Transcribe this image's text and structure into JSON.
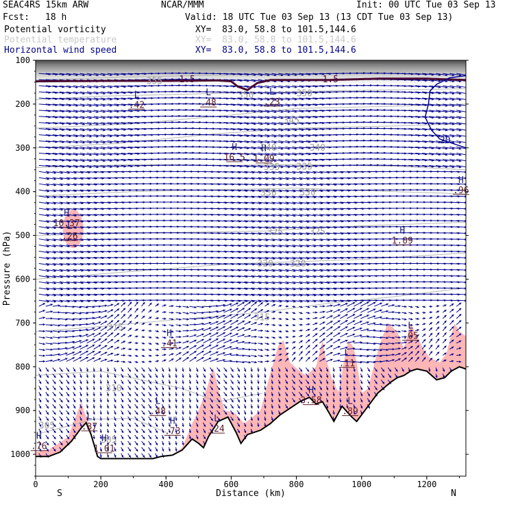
{
  "header": {
    "model": "SEAC4RS 15km ARW",
    "org": "NCAR/MMM",
    "init": "Init: 00 UTC Tue 03 Sep 13",
    "fcst_label": "Fcst:",
    "fcst_value": "18 h",
    "valid": "Valid: 18 UTC Tue 03 Sep 13 (13 CDT Tue 03 Sep 13)"
  },
  "fields": [
    {
      "name": "Potential vorticity",
      "xy": "XY=  83.0, 58.8 to 101.5,144.6",
      "color": "#000000"
    },
    {
      "name": "Potential temperature",
      "xy": "XY=  83.0, 58.8 to 101.5,144.6",
      "color": "#c8c8c8"
    },
    {
      "name": "Horizontal wind speed",
      "xy": "XY=  83.0, 58.8 to 101.5,144.6",
      "color": "#00008b"
    }
  ],
  "chart_data": {
    "type": "cross-section",
    "xlabel": "Distance (km)",
    "ylabel": "Pressure (hPa)",
    "xlim": [
      0,
      1320
    ],
    "ylim": [
      1050,
      100
    ],
    "x_ticks": [
      0,
      200,
      400,
      600,
      800,
      1000,
      1200
    ],
    "y_ticks": [
      100,
      200,
      300,
      400,
      500,
      600,
      700,
      800,
      900,
      1000
    ],
    "x_end_labels": {
      "left": "S",
      "right": "N"
    },
    "colors": {
      "terrain": "#000000",
      "pv_fill": "#ffb6b6",
      "wind": "#00008b",
      "theta": "#b4b4b4",
      "tropopause": "#4b0a32",
      "pv_label": "#5a1e28",
      "hl_label": "#1e1e7a"
    },
    "theta_levels": [
      {
        "value": 355,
        "labels": [
          "355"
        ]
      },
      {
        "value": 350,
        "labels": [
          "350",
          "350"
        ]
      },
      {
        "value": 345,
        "labels": [
          "345"
        ]
      },
      {
        "value": 340,
        "labels": [
          "340",
          "340"
        ]
      },
      {
        "value": 335,
        "labels": [
          "335",
          "335"
        ]
      },
      {
        "value": 330,
        "labels": [
          "330",
          "330"
        ]
      },
      {
        "value": 325,
        "labels": [
          "325",
          "325"
        ]
      },
      {
        "value": 320,
        "labels": [
          "320",
          "320"
        ]
      },
      {
        "value": 315,
        "labels": [
          "315",
          "315"
        ]
      },
      {
        "value": 310,
        "labels": [
          "310"
        ]
      },
      {
        "value": 305,
        "labels": [
          "305",
          "305"
        ]
      }
    ],
    "pv_contour_labels": [
      "1.5",
      "1.5"
    ],
    "wind_contour_label": "20",
    "extrema": [
      {
        "type": "L",
        "value": ".42",
        "x": 310,
        "p": 185
      },
      {
        "type": "L",
        "value": ".48",
        "x": 530,
        "p": 180
      },
      {
        "type": "L",
        "value": ".23",
        "x": 725,
        "p": 178
      },
      {
        "type": "H",
        "value": "16.5",
        "x": 610,
        "p": 305
      },
      {
        "type": "H",
        "value": "1.09",
        "x": 700,
        "p": 308
      },
      {
        "type": "H",
        "value": "10.37",
        "x": 95,
        "p": 455
      },
      {
        "type": "L",
        "value": ".26",
        "x": 105,
        "p": 485
      },
      {
        "type": "H",
        "value": ".96",
        "x": 1305,
        "p": 380
      },
      {
        "type": "H",
        "value": "1.09",
        "x": 1125,
        "p": 495
      },
      {
        "type": "H",
        "value": ".41",
        "x": 410,
        "p": 730
      },
      {
        "type": "L",
        "value": ".05",
        "x": 1150,
        "p": 713
      },
      {
        "type": "L",
        "value": ".11",
        "x": 955,
        "p": 775
      },
      {
        "type": "H",
        "value": "3.58",
        "x": 845,
        "p": 860
      },
      {
        "type": "L",
        "value": ".89",
        "x": 965,
        "p": 885
      },
      {
        "type": "L",
        "value": ".48",
        "x": 375,
        "p": 885
      },
      {
        "type": "L",
        "value": ".37",
        "x": 165,
        "p": 920
      },
      {
        "type": "H",
        "value": ".73",
        "x": 420,
        "p": 930
      },
      {
        "type": "L",
        "value": ".24",
        "x": 555,
        "p": 925
      },
      {
        "type": "H",
        "value": ".76",
        "x": 10,
        "p": 965
      },
      {
        "type": "H",
        "value": "1.01",
        "x": 210,
        "p": 970
      }
    ]
  }
}
